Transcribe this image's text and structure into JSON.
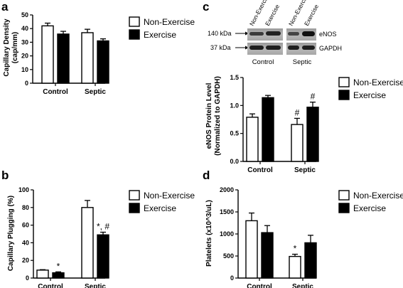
{
  "chart_data": [
    {
      "type": "bar",
      "panel": "a",
      "categories": [
        "Control",
        "Septic"
      ],
      "series": [
        {
          "name": "Non-Exercise",
          "values": [
            42,
            37
          ],
          "errors": [
            2,
            2.5
          ],
          "color": "#ffffff"
        },
        {
          "name": "Exercise",
          "values": [
            36,
            31
          ],
          "errors": [
            2,
            1.5
          ],
          "color": "#000000"
        }
      ],
      "ylabel": "Capillary Density (cap/mm)",
      "ylim": [
        0,
        50
      ],
      "yticks": [
        "0",
        "10",
        "20",
        "30",
        "40",
        "50"
      ],
      "annotations": [
        [],
        []
      ],
      "legend": "right"
    },
    {
      "type": "bar",
      "panel": "b",
      "categories": [
        "Control",
        "Septic"
      ],
      "series": [
        {
          "name": "Non-Exercise",
          "values": [
            9,
            80
          ],
          "errors": [
            0.5,
            8
          ],
          "color": "#ffffff"
        },
        {
          "name": "Exercise",
          "values": [
            6,
            49
          ],
          "errors": [
            1,
            3
          ],
          "color": "#000000"
        }
      ],
      "ylabel": "Capillary Plugging (%)",
      "ylim": [
        0,
        100
      ],
      "yticks": [
        "0",
        "20",
        "40",
        "60",
        "80",
        "100"
      ],
      "annotations": [
        [
          "",
          ""
        ],
        [
          "*",
          "*, #"
        ]
      ],
      "legend": "right"
    },
    {
      "type": "bar",
      "panel": "c",
      "categories": [
        "Control",
        "Septic"
      ],
      "series": [
        {
          "name": "Non-Exercise",
          "values": [
            0.79,
            0.66
          ],
          "errors": [
            0.06,
            0.11
          ],
          "color": "#ffffff"
        },
        {
          "name": "Exercise",
          "values": [
            1.14,
            0.97
          ],
          "errors": [
            0.04,
            0.09
          ],
          "color": "#000000"
        }
      ],
      "ylabel": "eNOS Protein Level (Normalized to GAPDH)",
      "ylim": [
        0,
        1.5
      ],
      "yticks": [
        "0.0",
        "0.5",
        "1.0",
        "1.5"
      ],
      "annotations": [
        [
          "",
          "#"
        ],
        [
          "",
          "#"
        ]
      ],
      "legend": "right"
    },
    {
      "type": "bar",
      "panel": "d",
      "categories": [
        "Control",
        "Septic"
      ],
      "series": [
        {
          "name": "Non-Exercise",
          "values": [
            1300,
            490
          ],
          "errors": [
            175,
            50
          ],
          "color": "#ffffff"
        },
        {
          "name": "Exercise",
          "values": [
            1030,
            800
          ],
          "errors": [
            160,
            170
          ],
          "color": "#000000"
        }
      ],
      "ylabel": "Platelets (x10^3/uL)",
      "ylim": [
        0,
        2000
      ],
      "yticks": [
        "0",
        "500",
        "1000",
        "1500",
        "2000"
      ],
      "annotations": [
        [
          "",
          "*"
        ],
        [
          "",
          ""
        ]
      ],
      "legend": "right"
    }
  ],
  "panels": {
    "a": {
      "letter": "a",
      "ylabel_line1": "Capillary Density",
      "ylabel_line2": "(cap/mm)"
    },
    "b": {
      "letter": "b",
      "ylabel_line1": "Capillary Plugging (%)"
    },
    "c": {
      "letter": "c",
      "ylabel_line1": "eNOS Protein Level",
      "ylabel_line2": "(Normalized to GAPDH)"
    },
    "d": {
      "letter": "d",
      "ylabel_line1": "Platelets (x10^3/uL)"
    }
  },
  "blot": {
    "lanes": [
      "Non-Exercise",
      "Exercise",
      "Non-Exercise",
      "Exercise"
    ],
    "markers": [
      "140 kDa",
      "37 kDa"
    ],
    "bands": [
      "eNOS",
      "GAPDH"
    ],
    "groups": [
      "Control",
      "Septic"
    ]
  }
}
